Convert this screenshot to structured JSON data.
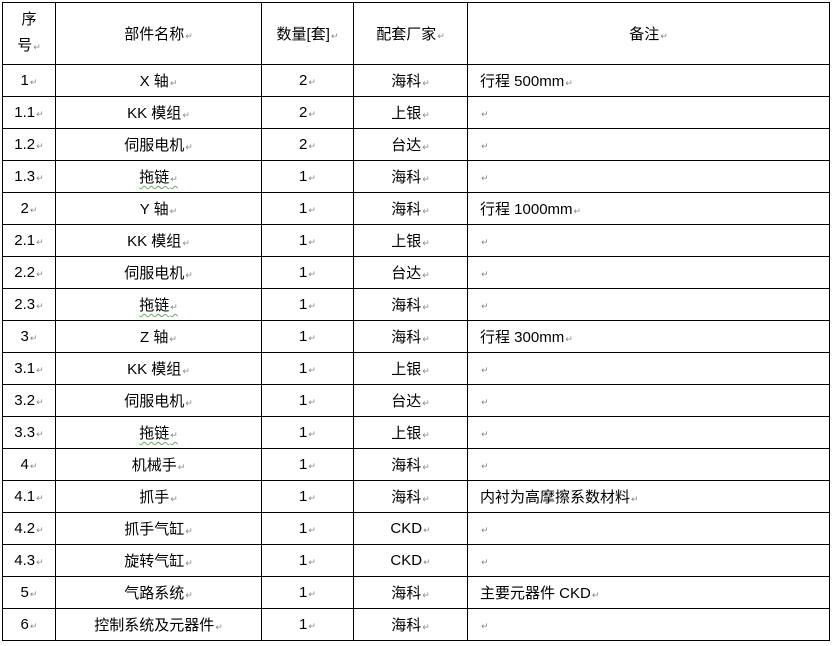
{
  "headers": {
    "seq_line1": "序",
    "seq_line2": "号",
    "name": "部件名称",
    "qty": "数量[套]",
    "vendor": "配套厂家",
    "note": "备注"
  },
  "rows": [
    {
      "seq": "1",
      "name": "X 轴",
      "qty": "2",
      "vendor": "海科",
      "note": "行程 500mm"
    },
    {
      "seq": "1.1",
      "name": "KK 模组",
      "qty": "2",
      "vendor": "上银",
      "note": ""
    },
    {
      "seq": "1.2",
      "name": "伺服电机",
      "qty": "2",
      "vendor": "台达",
      "note": ""
    },
    {
      "seq": "1.3",
      "name": "拖链",
      "qty": "1",
      "vendor": "海科",
      "note": ""
    },
    {
      "seq": "2",
      "name": "Y 轴",
      "qty": "1",
      "vendor": "海科",
      "note": "行程 1000mm"
    },
    {
      "seq": "2.1",
      "name": "KK 模组",
      "qty": "1",
      "vendor": "上银",
      "note": ""
    },
    {
      "seq": "2.2",
      "name": "伺服电机",
      "qty": "1",
      "vendor": "台达",
      "note": ""
    },
    {
      "seq": "2.3",
      "name": "拖链",
      "qty": "1",
      "vendor": "海科",
      "note": ""
    },
    {
      "seq": "3",
      "name": "Z 轴",
      "qty": "1",
      "vendor": "海科",
      "note": "行程 300mm"
    },
    {
      "seq": "3.1",
      "name": "KK 模组",
      "qty": "1",
      "vendor": "上银",
      "note": ""
    },
    {
      "seq": "3.2",
      "name": "伺服电机",
      "qty": "1",
      "vendor": "台达",
      "note": ""
    },
    {
      "seq": "3.3",
      "name": "拖链",
      "qty": "1",
      "vendor": "上银",
      "note": ""
    },
    {
      "seq": "4",
      "name": "机械手",
      "qty": "1",
      "vendor": "海科",
      "note": ""
    },
    {
      "seq": "4.1",
      "name": "抓手",
      "qty": "1",
      "vendor": "海科",
      "note": "内衬为高摩擦系数材料"
    },
    {
      "seq": "4.2",
      "name": "抓手气缸",
      "qty": "1",
      "vendor": "CKD",
      "note": ""
    },
    {
      "seq": "4.3",
      "name": "旋转气缸",
      "qty": "1",
      "vendor": "CKD",
      "note": ""
    },
    {
      "seq": "5",
      "name": "气路系统",
      "qty": "1",
      "vendor": "海科",
      "note": "主要元器件 CKD"
    },
    {
      "seq": "6",
      "name": "控制系统及元器件",
      "qty": "1",
      "vendor": "海科",
      "note": ""
    }
  ]
}
